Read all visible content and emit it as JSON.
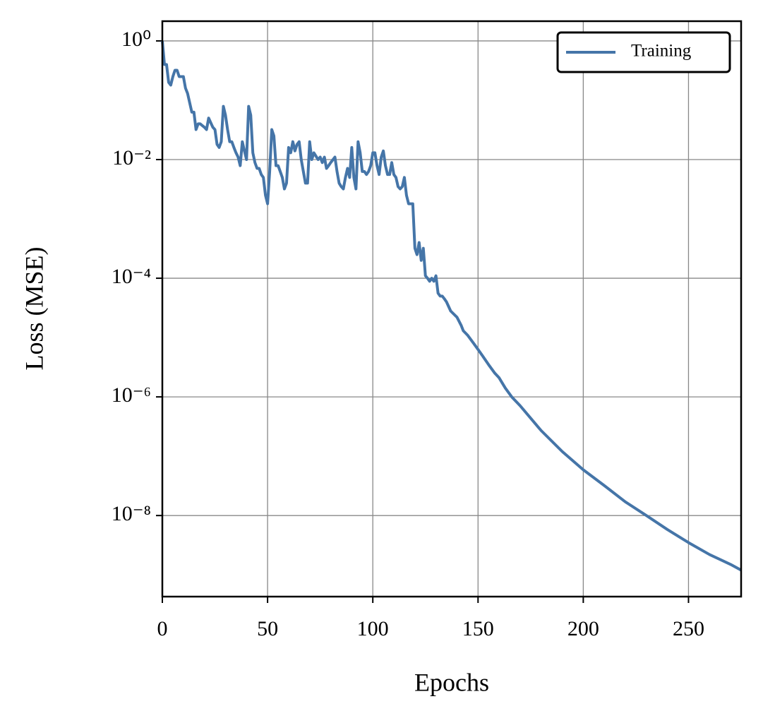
{
  "chart_data": {
    "type": "line",
    "xlabel": "Epochs",
    "ylabel": "Loss (MSE)",
    "x": [
      0,
      1,
      2,
      3,
      4,
      5,
      6,
      7,
      8,
      9,
      10,
      11,
      12,
      14,
      15,
      16,
      17,
      18,
      20,
      21,
      22,
      24,
      25,
      26,
      27,
      28,
      29,
      30,
      31,
      32,
      33,
      34,
      35,
      36,
      37,
      38,
      39,
      40,
      41,
      42,
      43,
      44,
      45,
      46,
      47,
      48,
      49,
      50,
      51,
      52,
      53,
      54,
      55,
      56,
      57,
      58,
      59,
      60,
      61,
      62,
      63,
      64,
      65,
      66,
      67,
      68,
      69,
      70,
      71,
      72,
      74,
      75,
      76,
      77,
      78,
      79,
      80,
      82,
      83,
      84,
      85,
      86,
      87,
      88,
      89,
      90,
      91,
      92,
      93,
      94,
      95,
      96,
      97,
      98,
      99,
      100,
      101,
      102,
      103,
      104,
      105,
      106,
      107,
      108,
      109,
      110,
      111,
      112,
      113,
      114,
      115,
      116,
      117,
      118,
      119,
      120,
      121,
      122,
      123,
      124,
      125,
      126,
      127,
      128,
      129,
      130,
      131,
      132,
      133,
      134,
      135,
      137,
      140,
      142,
      143,
      145,
      148,
      150,
      152,
      155,
      158,
      160,
      163,
      166,
      170,
      180,
      190,
      200,
      210,
      220,
      230,
      240,
      250,
      260,
      270,
      275
    ],
    "series": [
      {
        "name": "Training",
        "color": "#4575a8",
        "values": [
          1,
          0.4,
          0.4,
          0.2,
          0.18,
          0.25,
          0.32,
          0.32,
          0.25,
          0.25,
          0.25,
          0.16,
          0.13,
          0.063,
          0.063,
          0.032,
          0.04,
          0.04,
          0.035,
          0.032,
          0.05,
          0.035,
          0.032,
          0.018,
          0.016,
          0.02,
          0.079,
          0.056,
          0.032,
          0.02,
          0.02,
          0.016,
          0.013,
          0.011,
          0.0079,
          0.02,
          0.014,
          0.01,
          0.079,
          0.056,
          0.013,
          0.0089,
          0.0071,
          0.0071,
          0.0056,
          0.005,
          0.0025,
          0.0018,
          0.0063,
          0.032,
          0.025,
          0.0079,
          0.0079,
          0.0063,
          0.005,
          0.0032,
          0.004,
          0.016,
          0.013,
          0.02,
          0.014,
          0.018,
          0.02,
          0.01,
          0.0063,
          0.004,
          0.004,
          0.02,
          0.01,
          0.013,
          0.01,
          0.011,
          0.0089,
          0.011,
          0.0071,
          0.0079,
          0.0089,
          0.011,
          0.0063,
          0.004,
          0.0035,
          0.0032,
          0.005,
          0.0071,
          0.005,
          0.016,
          0.005,
          0.0032,
          0.02,
          0.013,
          0.0063,
          0.0063,
          0.0056,
          0.0063,
          0.0079,
          0.013,
          0.013,
          0.0079,
          0.0056,
          0.011,
          0.014,
          0.0079,
          0.0056,
          0.0056,
          0.0089,
          0.0056,
          0.005,
          0.0035,
          0.0032,
          0.0035,
          0.005,
          0.0025,
          0.0018,
          0.0018,
          0.0018,
          0.00032,
          0.00025,
          0.0004,
          0.0002,
          0.00032,
          0.00011,
          0.0001,
          8.9e-05,
          0.0001,
          8.9e-05,
          0.00011,
          5.6e-05,
          5e-05,
          5e-05,
          4.5e-05,
          4e-05,
          2.8e-05,
          2.2e-05,
          1.6e-05,
          1.3e-05,
          1.1e-05,
          7.9e-06,
          6.3e-06,
          5e-06,
          3.5e-06,
          2.5e-06,
          2.1e-06,
          1.4e-06,
          1e-06,
          7.1e-07,
          2.7e-07,
          1.2e-07,
          5.9e-08,
          3.2e-08,
          1.7e-08,
          1e-08,
          5.8e-09,
          3.5e-09,
          2.2e-09,
          1.5e-09,
          1.2e-09
        ]
      }
    ],
    "xlim": [
      0,
      275
    ],
    "xticks": [
      0,
      50,
      100,
      150,
      200,
      250
    ],
    "ylim": [
      4.3e-10,
      2.15
    ],
    "ylog": true,
    "yticks": [
      {
        "value": 1,
        "label": "10⁰"
      },
      {
        "value": 0.01,
        "label": "10⁻²"
      },
      {
        "value": 0.0001,
        "label": "10⁻⁴"
      },
      {
        "value": 1e-06,
        "label": "10⁻⁶"
      },
      {
        "value": 1e-08,
        "label": "10⁻⁸"
      }
    ],
    "grid": true,
    "legend": "upper right"
  }
}
